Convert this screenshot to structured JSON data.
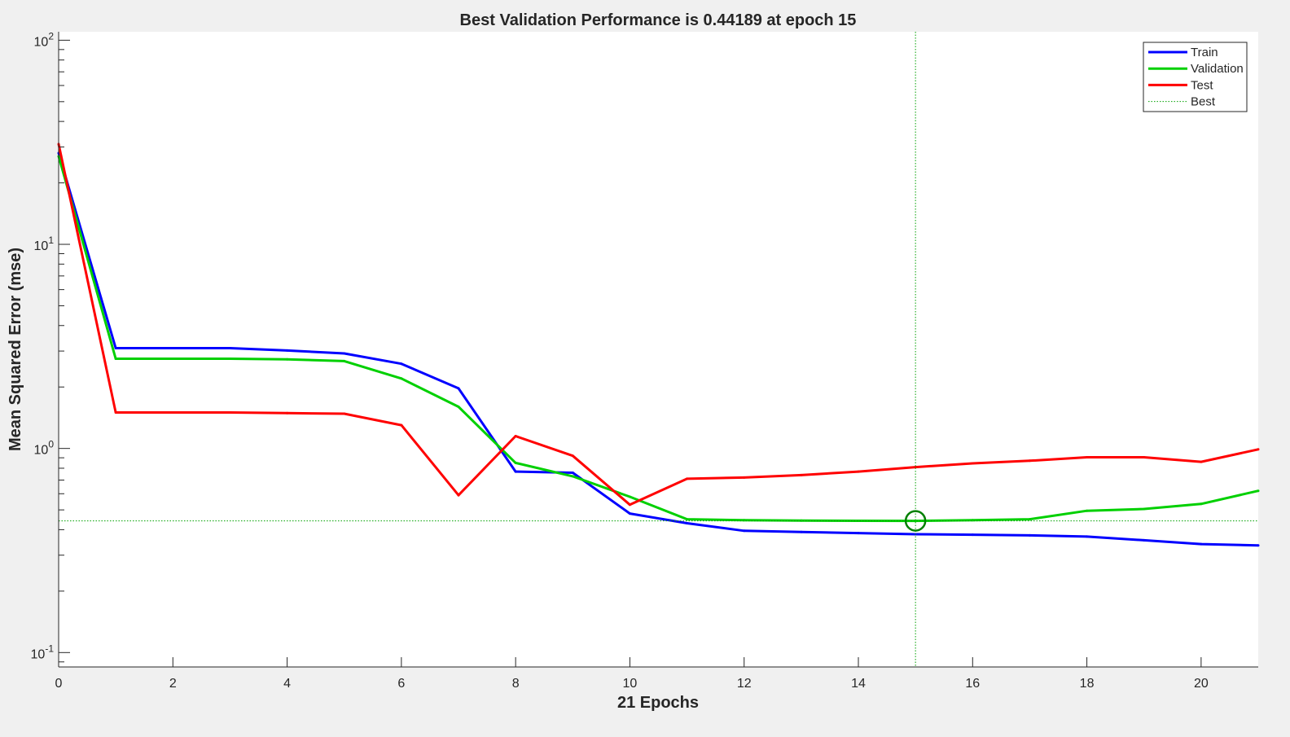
{
  "chart_data": {
    "type": "line",
    "title": "Best Validation Performance is 0.44189 at epoch 15",
    "xlabel": "21 Epochs",
    "ylabel": "Mean Squared Error  (mse)",
    "xlim": [
      0,
      21
    ],
    "ylim": [
      0.085,
      110
    ],
    "yscale": "log",
    "grid": false,
    "legend_position": "top-right",
    "x_ticks": [
      0,
      2,
      4,
      6,
      8,
      10,
      12,
      14,
      16,
      18,
      20
    ],
    "y_ticks": [
      {
        "value": 0.1,
        "base": "10",
        "exp": "-1"
      },
      {
        "value": 1,
        "base": "10",
        "exp": "0"
      },
      {
        "value": 10,
        "base": "10",
        "exp": "1"
      },
      {
        "value": 100,
        "base": "10",
        "exp": "2"
      }
    ],
    "x": [
      0,
      1,
      2,
      3,
      4,
      5,
      6,
      7,
      8,
      9,
      10,
      11,
      12,
      13,
      14,
      15,
      16,
      17,
      18,
      19,
      20,
      21
    ],
    "series": [
      {
        "name": "Train",
        "color": "#0000ff",
        "style": "solid",
        "values": [
          28,
          3.1,
          3.1,
          3.1,
          3.02,
          2.92,
          2.6,
          1.97,
          0.77,
          0.76,
          0.48,
          0.43,
          0.395,
          0.39,
          0.385,
          0.38,
          0.378,
          0.375,
          0.37,
          0.355,
          0.34,
          0.335
        ]
      },
      {
        "name": "Validation",
        "color": "#00d000",
        "style": "solid",
        "values": [
          27,
          2.75,
          2.75,
          2.75,
          2.73,
          2.68,
          2.2,
          1.6,
          0.85,
          0.73,
          0.58,
          0.45,
          0.445,
          0.443,
          0.442,
          0.44189,
          0.445,
          0.45,
          0.495,
          0.505,
          0.535,
          0.62
        ]
      },
      {
        "name": "Test",
        "color": "#ff0000",
        "style": "solid",
        "values": [
          31,
          1.5,
          1.5,
          1.5,
          1.49,
          1.48,
          1.3,
          0.59,
          1.15,
          0.92,
          0.53,
          0.71,
          0.72,
          0.74,
          0.77,
          0.81,
          0.845,
          0.87,
          0.905,
          0.905,
          0.86,
          0.99
        ]
      }
    ],
    "best": {
      "name": "Best",
      "epoch": 15,
      "value": 0.44189,
      "color": "#00a000",
      "style": "dotted"
    }
  }
}
